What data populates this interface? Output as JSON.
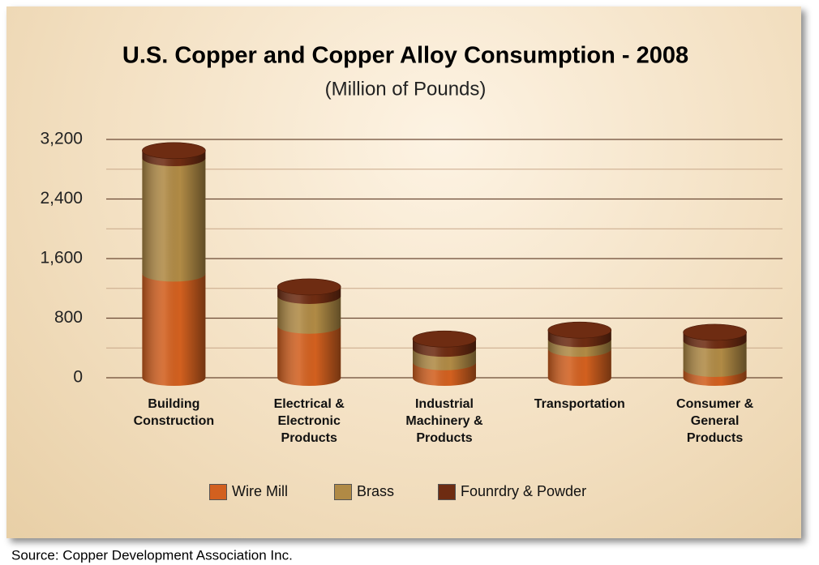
{
  "chart_data": {
    "type": "stacked_cylinder",
    "title": "U.S. Copper and Copper Alloy Consumption - 2008",
    "subtitle": "(Million of Pounds)",
    "categories": [
      "Building\nConstruction",
      "Electrical &\nElectronic\nProducts",
      "Industrial\nMachinery &\nProducts",
      "Transportation",
      "Consumer &\nGeneral\nProducts"
    ],
    "series": [
      {
        "name": "Wire Mill",
        "color": "#d2601f",
        "values": [
          1400,
          700,
          210,
          390,
          120
        ]
      },
      {
        "name": "Brass",
        "color": "#b08a45",
        "values": [
          1550,
          400,
          180,
          130,
          380
        ]
      },
      {
        "name": "Founrdry & Powder",
        "color": "#6e2c12",
        "values": [
          100,
          120,
          130,
          120,
          110
        ]
      }
    ],
    "ylim": [
      0,
      3200
    ],
    "yticks": [
      0,
      800,
      {
        "value": 1600,
        "label": "1,600"
      },
      {
        "value": 2400,
        "label": "2,400"
      },
      {
        "value": 3200,
        "label": "3,200"
      }
    ],
    "minor_yticks": [
      400,
      1200,
      2000,
      2800
    ],
    "grid": true,
    "source": "Source: Copper Development Association Inc."
  }
}
